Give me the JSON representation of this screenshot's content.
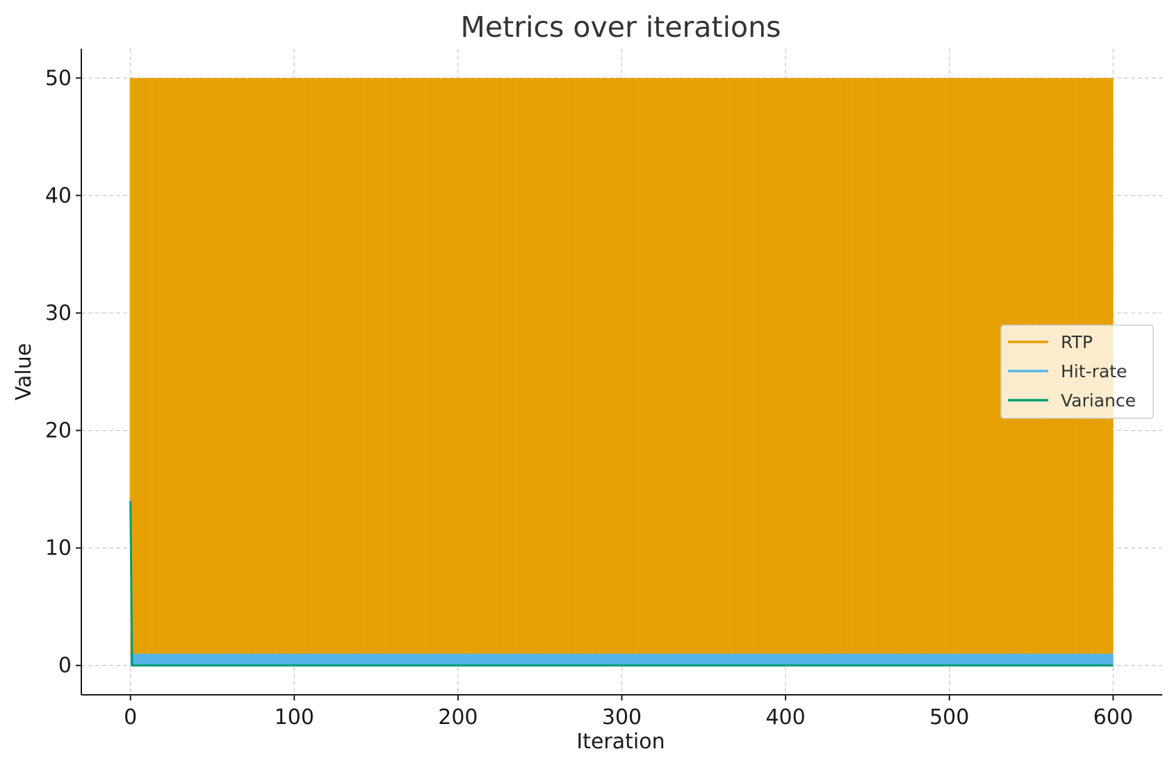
{
  "chart_data": {
    "type": "line",
    "title": "Metrics over iterations",
    "xlabel": "Iteration",
    "ylabel": "Value",
    "xlim": [
      -30,
      630
    ],
    "ylim": [
      -2.5,
      52.5
    ],
    "x_ticks": [
      0,
      100,
      200,
      300,
      400,
      500,
      600
    ],
    "y_ticks": [
      0,
      10,
      20,
      30,
      40,
      50
    ],
    "grid": true,
    "legend_position": "center-right",
    "x_range": [
      0,
      600
    ],
    "series": [
      {
        "name": "RTP",
        "color": "#E69F00",
        "description_values": {
          "start": 14,
          "low": 0.5,
          "high": 50,
          "pattern": "oscillating"
        }
      },
      {
        "name": "Hit-rate",
        "color": "#56B4E9",
        "description_values": {
          "low": 0,
          "high": 1,
          "pattern": "oscillating"
        }
      },
      {
        "name": "Variance",
        "color": "#009E73",
        "description_values": {
          "start": 14,
          "settle": 0,
          "pattern": "drop"
        }
      }
    ]
  }
}
